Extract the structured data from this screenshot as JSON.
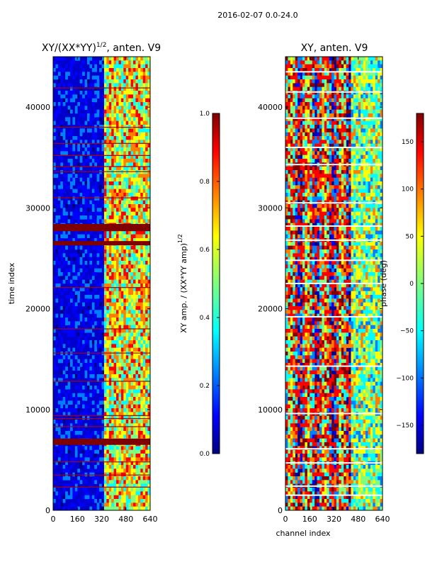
{
  "figure_title": "2016-02-07 0.0-24.0",
  "chart_data": [
    {
      "type": "heatmap",
      "title": "XY/(XX*YY)",
      "title_sup": "1/2",
      "title_suffix": ", anten. V9",
      "xlabel": "",
      "ylabel": "time index",
      "xlim": [
        0,
        640
      ],
      "ylim": [
        0,
        45000
      ],
      "xticks": [
        0,
        160,
        320,
        480,
        640
      ],
      "yticks": [
        0,
        10000,
        20000,
        30000,
        40000
      ],
      "colorbar": {
        "label": "XY amp. / (XX*YY amp)",
        "label_sup": "1/2",
        "range": [
          0.0,
          1.0
        ],
        "ticks": [
          "0.0",
          "0.2",
          "0.4",
          "0.6",
          "0.8",
          "1.0"
        ],
        "colormap": "jet"
      },
      "features": {
        "bright_band_channels": [
          330,
          640
        ],
        "saturated_rows": [
          6700,
          6900,
          26500,
          27900,
          28200
        ],
        "flagged_rows": [
          2300,
          3500,
          4800,
          8300,
          9100,
          9400,
          12800,
          15600,
          18000,
          22100,
          31000,
          33600,
          34100,
          35200,
          36400,
          38000,
          41900
        ]
      }
    },
    {
      "type": "heatmap",
      "title": "XY, anten. V9",
      "xlabel": "channel index",
      "ylabel": "",
      "xlim": [
        0,
        640
      ],
      "ylim": [
        0,
        45000
      ],
      "xticks": [
        0,
        160,
        320,
        480,
        640
      ],
      "yticks": [
        0,
        10000,
        20000,
        30000,
        40000
      ],
      "colorbar": {
        "label": "phase (deg)",
        "range": [
          -180,
          180
        ],
        "ticks": [
          "−150",
          "−100",
          "−50",
          "0",
          "50",
          "100",
          "150"
        ],
        "colormap": "jet"
      },
      "features": {
        "gap_rows": [
          1500,
          2400,
          4700,
          6100,
          9600,
          14300,
          19200,
          22500,
          24800,
          26800,
          28200,
          30500,
          34300,
          36000,
          38900,
          41500,
          43500
        ]
      }
    }
  ],
  "colors": {
    "jet": [
      "#00007f",
      "#0000ff",
      "#007fff",
      "#00ffff",
      "#7fff7f",
      "#ffff00",
      "#ff7f00",
      "#ff0000",
      "#7f0000"
    ]
  }
}
